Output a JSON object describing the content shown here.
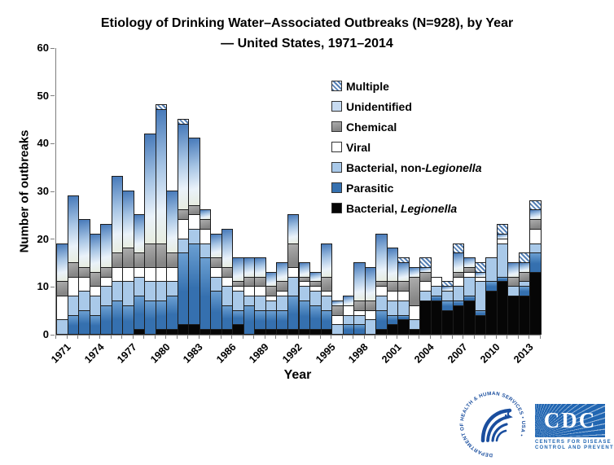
{
  "title": {
    "line1": "Etiology of Drinking Water–Associated Outbreaks (N=928), by Year",
    "line2": "— United States, 1971–2014"
  },
  "y_axis": {
    "label": "Number of outbreaks",
    "ticks": [
      0,
      10,
      20,
      30,
      40,
      50,
      60
    ]
  },
  "x_axis": {
    "label": "Year",
    "tick_labels": [
      "1971",
      "1974",
      "1977",
      "1980",
      "1983",
      "1986",
      "1989",
      "1992",
      "1995",
      "1998",
      "2001",
      "2004",
      "2007",
      "2010",
      "2013"
    ]
  },
  "legend": {
    "items": [
      {
        "key": "multiple",
        "prefix": "Multiple",
        "italic": ""
      },
      {
        "key": "unidentified",
        "prefix": "Unidentified",
        "italic": ""
      },
      {
        "key": "chemical",
        "prefix": "Chemical",
        "italic": ""
      },
      {
        "key": "viral",
        "prefix": "Viral",
        "italic": ""
      },
      {
        "key": "bacterial",
        "prefix": "Bacterial, non-",
        "italic": "Legionella"
      },
      {
        "key": "parasitic",
        "prefix": "Parasitic",
        "italic": ""
      },
      {
        "key": "legionella",
        "prefix": "Bacterial, ",
        "italic": "Legionella"
      }
    ]
  },
  "colors": {
    "legionella": "#060606",
    "parasitic": "#3570af",
    "parasitic_light": "#6b9fd2",
    "bacterial": "#a9c9e9",
    "viral": "#ffffff",
    "chemical": "#868686",
    "chemical_light": "#adadad",
    "unidentified_top": "#4679b9",
    "unidentified_mid": "#a6c4e4",
    "unidentified_low": "#eaf2fa",
    "unidentified_bottom": "#e7ecdf",
    "unidentified_swatch": "#c7dbf1",
    "multiple_blue": "#5580b5",
    "segment_border": "#1c1c1c",
    "axis": "#7f7f7f",
    "logo_blue": "#1a4e9e",
    "cdc_blue": "#2166b2"
  },
  "chart_data": {
    "type": "bar",
    "stacked": true,
    "title": "Etiology of Drinking Water–Associated Outbreaks (N=928), by Year — United States, 1971–2014",
    "xlabel": "Year",
    "ylabel": "Number of outbreaks",
    "ylim": [
      0,
      60
    ],
    "grid": false,
    "legend_position": "upper-right-inside",
    "total_n": 928,
    "categories": [
      1971,
      1972,
      1973,
      1974,
      1975,
      1976,
      1977,
      1978,
      1979,
      1980,
      1981,
      1982,
      1983,
      1984,
      1985,
      1986,
      1987,
      1988,
      1989,
      1990,
      1991,
      1992,
      1993,
      1994,
      1995,
      1996,
      1997,
      1998,
      1999,
      2000,
      2001,
      2002,
      2003,
      2004,
      2005,
      2006,
      2007,
      2008,
      2009,
      2010,
      2011,
      2012,
      2013,
      2014
    ],
    "series": [
      {
        "key": "legionella",
        "name": "Bacterial, Legionella",
        "values": [
          0,
          0,
          0,
          0,
          0,
          0,
          0,
          1,
          0,
          1,
          1,
          2,
          2,
          1,
          1,
          1,
          2,
          0,
          1,
          1,
          1,
          1,
          1,
          1,
          1,
          0,
          0,
          0,
          0,
          1,
          2,
          3,
          1,
          7,
          7,
          5,
          6,
          7,
          4,
          9,
          11,
          8,
          8,
          13
        ]
      },
      {
        "key": "parasitic",
        "name": "Parasitic",
        "values": [
          0,
          4,
          5,
          4,
          6,
          7,
          6,
          7,
          7,
          6,
          7,
          15,
          17,
          15,
          8,
          5,
          3,
          6,
          4,
          4,
          4,
          7,
          6,
          5,
          4,
          0,
          2,
          2,
          0,
          4,
          2,
          1,
          0,
          0,
          1,
          2,
          1,
          1,
          1,
          2,
          1,
          0,
          2,
          4
        ]
      },
      {
        "key": "bacterial",
        "name": "Bacterial, non-Legionella",
        "values": [
          3,
          4,
          4,
          4,
          4,
          4,
          5,
          4,
          4,
          4,
          3,
          3,
          3,
          3,
          3,
          4,
          4,
          2,
          3,
          2,
          3,
          4,
          3,
          3,
          3,
          2,
          2,
          2,
          3,
          3,
          3,
          3,
          2,
          2,
          2,
          2,
          3,
          4,
          6,
          5,
          7,
          2,
          1,
          2
        ]
      },
      {
        "key": "viral",
        "name": "Viral",
        "values": [
          5,
          4,
          3,
          2,
          2,
          3,
          3,
          2,
          3,
          3,
          3,
          4,
          3,
          3,
          2,
          2,
          1,
          2,
          2,
          1,
          1,
          2,
          1,
          1,
          1,
          2,
          2,
          1,
          2,
          2,
          2,
          2,
          3,
          2,
          2,
          0,
          2,
          1,
          1,
          0,
          1,
          0,
          0,
          3
        ]
      },
      {
        "key": "chemical",
        "name": "Chemical",
        "values": [
          3,
          3,
          2,
          3,
          2,
          3,
          4,
          3,
          5,
          5,
          3,
          2,
          2,
          2,
          2,
          2,
          1,
          2,
          2,
          2,
          2,
          5,
          1,
          1,
          3,
          2,
          0,
          2,
          2,
          1,
          2,
          2,
          6,
          2,
          0,
          0,
          1,
          1,
          0,
          0,
          0,
          2,
          2,
          2
        ]
      },
      {
        "key": "unidentified",
        "name": "Unidentified",
        "values": [
          8,
          14,
          10,
          8,
          9,
          16,
          12,
          8,
          23,
          28,
          13,
          18,
          14,
          2,
          5,
          8,
          5,
          4,
          4,
          3,
          4,
          6,
          3,
          2,
          7,
          1,
          2,
          8,
          7,
          10,
          7,
          4,
          2,
          1,
          0,
          1,
          4,
          2,
          1,
          0,
          1,
          3,
          2,
          2
        ]
      },
      {
        "key": "multiple",
        "name": "Multiple",
        "values": [
          0,
          0,
          0,
          0,
          0,
          0,
          0,
          0,
          0,
          1,
          0,
          1,
          0,
          0,
          0,
          0,
          0,
          0,
          0,
          0,
          0,
          0,
          0,
          0,
          0,
          0,
          0,
          0,
          0,
          0,
          0,
          1,
          0,
          2,
          0,
          1,
          2,
          0,
          2,
          0,
          2,
          0,
          2,
          2
        ]
      }
    ]
  },
  "footer": {
    "hhs_ring_text": "DEPARTMENT OF HEALTH & HUMAN SERVICES • USA •",
    "cdc_word": "CDC",
    "cdc_caption_line1": "CENTERS FOR DISEASE",
    "cdc_caption_line2": "CONTROL AND PREVENTION"
  }
}
